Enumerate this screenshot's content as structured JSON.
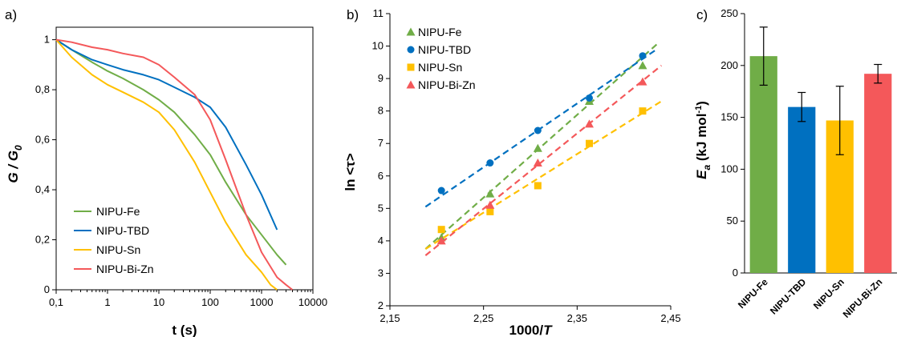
{
  "chart_data": [
    {
      "panel_label": "a)",
      "type": "line",
      "xlabel": "t (s)",
      "ylabel": "G / G0",
      "ylabel_parts": [
        "G / G",
        "0"
      ],
      "xscale": "log",
      "xlim": [
        0.1,
        10000
      ],
      "ylim": [
        0,
        1.05
      ],
      "xticks": [
        0.1,
        1,
        10,
        100,
        1000,
        10000
      ],
      "xtick_labels": [
        "0,1",
        "1",
        "10",
        "100",
        "1000",
        "10000"
      ],
      "yticks": [
        0,
        0.2,
        0.4,
        0.6,
        0.8,
        1
      ],
      "ytick_labels": [
        "0",
        "0,2",
        "0,4",
        "0,6",
        "0,8",
        "1"
      ],
      "legend_position": "bottom-left",
      "series": [
        {
          "name": "NIPU-Fe",
          "color": "#70ad47",
          "points": [
            [
              0.1,
              1
            ],
            [
              0.2,
              0.96
            ],
            [
              0.5,
              0.91
            ],
            [
              1,
              0.875
            ],
            [
              2,
              0.845
            ],
            [
              5,
              0.8
            ],
            [
              10,
              0.76
            ],
            [
              20,
              0.71
            ],
            [
              50,
              0.62
            ],
            [
              100,
              0.54
            ],
            [
              200,
              0.43
            ],
            [
              500,
              0.3
            ],
            [
              1000,
              0.22
            ],
            [
              2000,
              0.14
            ],
            [
              3000,
              0.1
            ]
          ]
        },
        {
          "name": "NIPU-TBD",
          "color": "#0070c0",
          "points": [
            [
              0.1,
              1
            ],
            [
              0.2,
              0.96
            ],
            [
              0.5,
              0.92
            ],
            [
              1,
              0.9
            ],
            [
              2,
              0.88
            ],
            [
              5,
              0.86
            ],
            [
              10,
              0.84
            ],
            [
              20,
              0.81
            ],
            [
              50,
              0.77
            ],
            [
              100,
              0.73
            ],
            [
              200,
              0.65
            ],
            [
              500,
              0.5
            ],
            [
              1000,
              0.38
            ],
            [
              2000,
              0.24
            ]
          ]
        },
        {
          "name": "NIPU-Sn",
          "color": "#ffc000",
          "points": [
            [
              0.1,
              1
            ],
            [
              0.2,
              0.93
            ],
            [
              0.5,
              0.86
            ],
            [
              1,
              0.82
            ],
            [
              2,
              0.79
            ],
            [
              5,
              0.75
            ],
            [
              10,
              0.71
            ],
            [
              20,
              0.64
            ],
            [
              50,
              0.51
            ],
            [
              100,
              0.39
            ],
            [
              200,
              0.27
            ],
            [
              500,
              0.14
            ],
            [
              1000,
              0.07
            ],
            [
              1500,
              0.02
            ],
            [
              2000,
              0.0
            ]
          ]
        },
        {
          "name": "NIPU-Bi-Zn",
          "color": "#f4585a",
          "points": [
            [
              0.1,
              1
            ],
            [
              0.2,
              0.99
            ],
            [
              0.5,
              0.97
            ],
            [
              1,
              0.96
            ],
            [
              2,
              0.945
            ],
            [
              5,
              0.93
            ],
            [
              10,
              0.9
            ],
            [
              20,
              0.85
            ],
            [
              50,
              0.78
            ],
            [
              100,
              0.68
            ],
            [
              200,
              0.52
            ],
            [
              500,
              0.3
            ],
            [
              1000,
              0.15
            ],
            [
              2000,
              0.05
            ],
            [
              3000,
              0.02
            ],
            [
              4000,
              0.0
            ]
          ]
        }
      ]
    },
    {
      "panel_label": "b)",
      "type": "scatter",
      "xlabel": "1000/T",
      "xlabel_parts": [
        "1000/",
        "T"
      ],
      "ylabel": "ln <τ>",
      "xlim": [
        2.15,
        2.45
      ],
      "ylim": [
        2,
        11
      ],
      "xticks": [
        2.15,
        2.25,
        2.35,
        2.45
      ],
      "xtick_labels": [
        "2,15",
        "2,25",
        "2,35",
        "2,45"
      ],
      "yticks": [
        2,
        3,
        4,
        5,
        6,
        7,
        8,
        9,
        10,
        11
      ],
      "ytick_labels": [
        "2",
        "3",
        "4",
        "5",
        "6",
        "7",
        "8",
        "9",
        "10",
        "11"
      ],
      "legend_position": "top-left",
      "series": [
        {
          "name": "NIPU-Fe",
          "color": "#70ad47",
          "marker": "triangle",
          "points": [
            [
              2.205,
              4.1
            ],
            [
              2.257,
              5.45
            ],
            [
              2.308,
              6.85
            ],
            [
              2.363,
              8.3
            ],
            [
              2.42,
              9.4
            ]
          ],
          "fit": [
            [
              2.188,
              3.75
            ],
            [
              2.435,
              10.05
            ]
          ]
        },
        {
          "name": "NIPU-TBD",
          "color": "#0070c0",
          "marker": "circle",
          "points": [
            [
              2.205,
              5.55
            ],
            [
              2.257,
              6.4
            ],
            [
              2.308,
              7.4
            ],
            [
              2.363,
              8.4
            ],
            [
              2.42,
              9.7
            ]
          ],
          "fit": [
            [
              2.188,
              5.05
            ],
            [
              2.435,
              9.9
            ]
          ]
        },
        {
          "name": "NIPU-Sn",
          "color": "#ffc000",
          "marker": "square",
          "points": [
            [
              2.205,
              4.35
            ],
            [
              2.257,
              4.9
            ],
            [
              2.308,
              5.7
            ],
            [
              2.363,
              7.0
            ],
            [
              2.42,
              8.0
            ]
          ],
          "fit": [
            [
              2.188,
              3.75
            ],
            [
              2.44,
              8.3
            ]
          ]
        },
        {
          "name": "NIPU-Bi-Zn",
          "color": "#f4585a",
          "marker": "triangle",
          "points": [
            [
              2.205,
              4.0
            ],
            [
              2.257,
              5.1
            ],
            [
              2.308,
              6.4
            ],
            [
              2.363,
              7.6
            ],
            [
              2.42,
              8.9
            ]
          ],
          "fit": [
            [
              2.188,
              3.55
            ],
            [
              2.44,
              9.4
            ]
          ]
        }
      ]
    },
    {
      "panel_label": "c)",
      "type": "bar",
      "ylabel": "Ea (kJ mol-1)",
      "ylabel_parts": [
        "E",
        "a",
        " (kJ mol",
        "-1",
        ")"
      ],
      "ylim": [
        0,
        250
      ],
      "yticks": [
        0,
        50,
        100,
        150,
        200,
        250
      ],
      "ytick_labels": [
        "0",
        "50",
        "100",
        "150",
        "200",
        "250"
      ],
      "categories": [
        "NIPU-Fe",
        "NIPU-TBD",
        "NIPU-Sn",
        "NIPU-Bi-Zn"
      ],
      "values": [
        209,
        160,
        147,
        192
      ],
      "errors": [
        28,
        14,
        33,
        9
      ],
      "colors": [
        "#70ad47",
        "#0070c0",
        "#ffc000",
        "#f4585a"
      ]
    }
  ]
}
